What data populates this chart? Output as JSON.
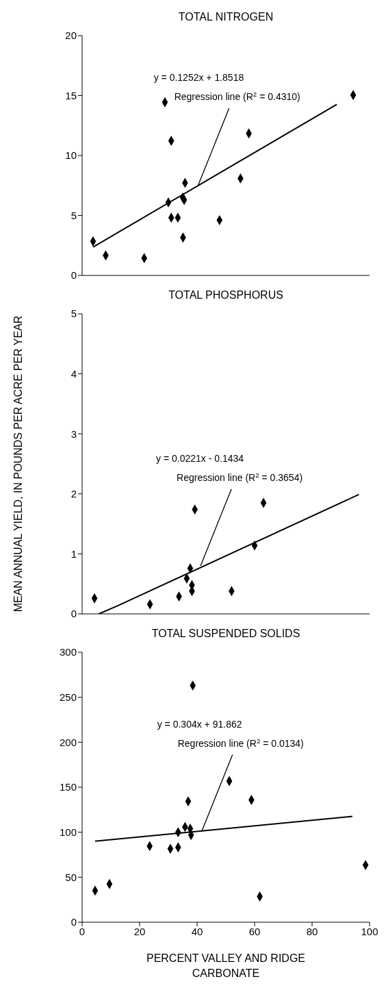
{
  "chart_data": [
    {
      "type": "scatter",
      "title": "TOTAL NITROGEN",
      "xlim": [
        0,
        100
      ],
      "xticks": [
        0,
        20,
        40,
        60,
        80,
        100
      ],
      "ylim": [
        0,
        20
      ],
      "yticks": [
        0,
        5,
        10,
        15,
        20
      ],
      "tick_labels": "y",
      "grid": false,
      "legend": false,
      "series": [
        {
          "type": "scatter",
          "marker": "diamond",
          "color": "#000000",
          "x": [
            3.8,
            8.2,
            21.6,
            28.8,
            30,
            31,
            31,
            33.3,
            35,
            35.5,
            35.1,
            35.8,
            47.8,
            55.1,
            58,
            94.3
          ],
          "values": [
            2.84,
            1.67,
            1.44,
            14.44,
            6.09,
            11.23,
            4.82,
            4.82,
            6.5,
            6.3,
            3.16,
            7.72,
            4.61,
            8.09,
            11.84,
            15.04
          ]
        },
        {
          "type": "line",
          "color": "#000000",
          "x": [
            3.8,
            88.6
          ],
          "values": [
            2.37,
            14.26
          ]
        }
      ],
      "annotations": [
        "y = 0.1252x + 1.8518",
        {
          "text": "Regression line (R$^{2}$ = 0.4310)",
          "x": 40.4,
          "y": 7.54
        }
      ]
    },
    {
      "type": "scatter",
      "title": "TOTAL PHOSPHORUS",
      "ylabel": "MEAN ANNUAL YIELD, IN POUNDS PER ACRE PER YEAR",
      "xlim": [
        0,
        100
      ],
      "xticks": [
        0,
        20,
        40,
        60,
        80,
        100
      ],
      "ylim": [
        0,
        5
      ],
      "yticks": [
        0,
        1,
        2,
        3,
        4,
        5
      ],
      "tick_labels": "y",
      "grid": false,
      "legend": false,
      "series": [
        {
          "type": "scatter",
          "marker": "diamond",
          "color": "#000000",
          "x": [
            4.3,
            23.6,
            33.7,
            36.4,
            37.6,
            38.2,
            38.2,
            39.2,
            52,
            60,
            63.1
          ],
          "values": [
            0.26,
            0.16,
            0.29,
            0.59,
            0.76,
            0.48,
            0.38,
            1.74,
            0.38,
            1.14,
            1.85
          ]
        },
        {
          "type": "line",
          "color": "#000000",
          "x": [
            5.8,
            12.1,
            96.3
          ],
          "values": [
            0,
            0.13,
            1.99
          ]
        }
      ],
      "annotations": [
        "y = 0.0221x - 0.1434",
        {
          "text": "Regression line (R$^{2}$ = 0.3654)",
          "x": 41.2,
          "y": 0.8
        }
      ]
    },
    {
      "type": "scatter",
      "title": "TOTAL SUSPENDED SOLIDS",
      "xlabel": "PERCENT VALLEY AND RIDGE CARBONATE",
      "xlim": [
        0,
        100
      ],
      "xticks": [
        0,
        20,
        40,
        60,
        80,
        100
      ],
      "ylim": [
        0,
        300
      ],
      "yticks": [
        0,
        50,
        100,
        150,
        200,
        250,
        300
      ],
      "grid": false,
      "legend": false,
      "series": [
        {
          "type": "scatter",
          "marker": "diamond",
          "color": "#000000",
          "x": [
            4.5,
            9.5,
            23.5,
            30.7,
            33.4,
            33.4,
            35.8,
            36.9,
            37.6,
            37.9,
            38.5,
            51.2,
            58.9,
            61.8,
            98.6
          ],
          "values": [
            35.1,
            42.4,
            84.6,
            81.6,
            100,
            83.2,
            105.9,
            134.3,
            104,
            96.8,
            263,
            156.8,
            135.9,
            28.6,
            63.5
          ]
        },
        {
          "type": "line",
          "color": "#000000",
          "x": [
            4.5,
            94
          ],
          "values": [
            90,
            117.6
          ]
        }
      ],
      "annotations": [
        "y = 0.304x + 91.862",
        {
          "text": "Regression line (R$^{2}$ = 0.0134)",
          "x": 41.6,
          "y": 100.8
        }
      ]
    }
  ]
}
